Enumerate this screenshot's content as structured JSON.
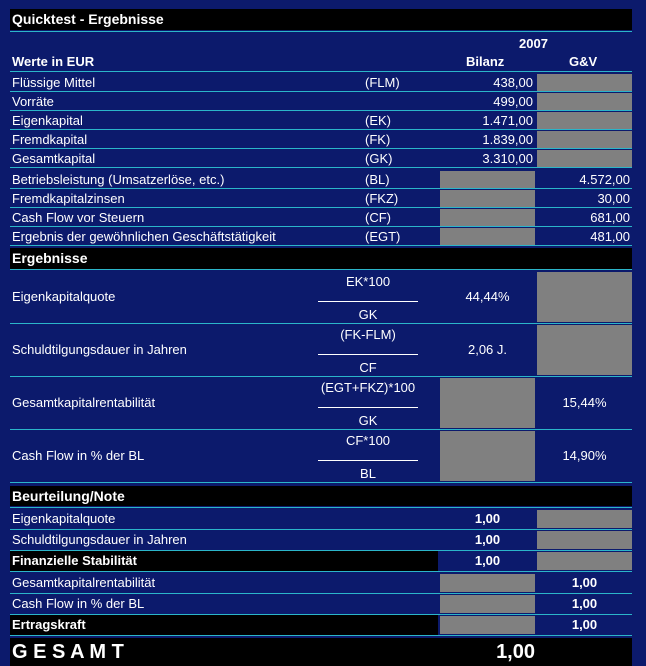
{
  "header": {
    "title": "Quicktest - Ergebnisse"
  },
  "columns": {
    "year": "2007",
    "label": "Werte in EUR",
    "bilanz": "Bilanz",
    "guv": "G&V"
  },
  "rows": [
    {
      "label": "Flüssige Mittel",
      "abbr": "(FLM)",
      "bilanz": "438,00"
    },
    {
      "label": "Vorräte",
      "bilanz": "499,00"
    },
    {
      "label": "Eigenkapital",
      "abbr": "(EK)",
      "bilanz": "1.471,00"
    },
    {
      "label": "Fremdkapital",
      "abbr": "(FK)",
      "bilanz": "1.839,00"
    },
    {
      "label": "Gesamtkapital",
      "abbr": "(GK)",
      "bilanz": "3.310,00"
    },
    {
      "label": "Betriebsleistung (Umsatzerlöse, etc.)",
      "abbr": "(BL)",
      "guv": "4.572,00"
    },
    {
      "label": "Fremdkapitalzinsen",
      "abbr": "(FKZ)",
      "guv": "30,00"
    },
    {
      "label": "Cash Flow vor Steuern",
      "abbr": "(CF)",
      "guv": "681,00"
    },
    {
      "label": "Ergebnis der gewöhnlichen Geschäftstätigkeit",
      "abbr": "(EGT)",
      "guv": "481,00"
    }
  ],
  "results": {
    "title": "Ergebnisse",
    "rows": [
      {
        "label": "Eigenkapitalquote",
        "numerator": "EK*100",
        "denominator": "GK",
        "bilanz": "44,44%"
      },
      {
        "label": "Schuldtilgungsdauer in Jahren",
        "numerator": "(FK-FLM)",
        "denominator": "CF",
        "bilanz": "2,06 J."
      },
      {
        "label": "Gesamtkapitalrentabilität",
        "numerator": "(EGT+FKZ)*100",
        "denominator": "GK",
        "guv": "15,44%"
      },
      {
        "label": "Cash Flow in % der BL",
        "numerator": "CF*100",
        "denominator": "BL",
        "guv": "14,90%"
      }
    ]
  },
  "rating": {
    "title": "Beurteilung/Note",
    "rows": [
      {
        "label": "Eigenkapitalquote",
        "bilanz": "1,00"
      },
      {
        "label": "Schuldtilgungsdauer in Jahren",
        "bilanz": "1,00"
      },
      {
        "label": "Finanzielle Stabilität",
        "bold": true,
        "bilanz": "1,00"
      },
      {
        "label": "Gesamtkapitalrentabilität",
        "guv": "1,00"
      },
      {
        "label": "Cash Flow in % der BL",
        "guv": "1,00"
      },
      {
        "label": "Ertragskraft",
        "bold": true,
        "guv": "1,00"
      }
    ]
  },
  "total": {
    "label": "G E S A M T",
    "value": "1,00"
  }
}
